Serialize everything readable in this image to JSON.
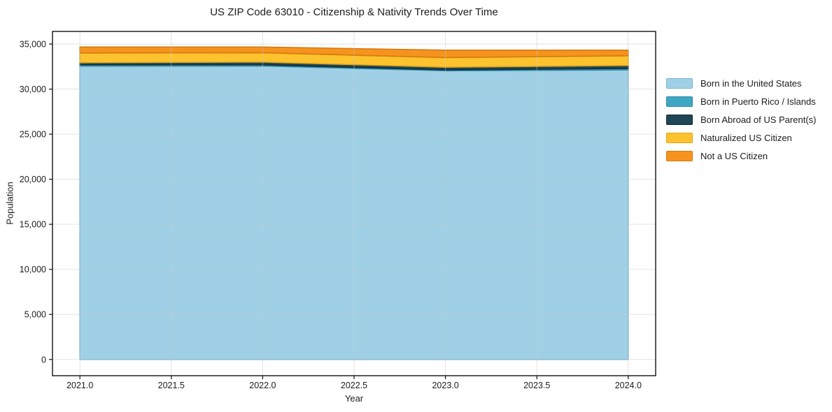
{
  "chart_data": {
    "type": "area",
    "stacked": true,
    "title": "US ZIP Code 63010 - Citizenship & Nativity Trends Over Time",
    "xlabel": "Year",
    "ylabel": "Population",
    "x": [
      2021,
      2022,
      2023,
      2024
    ],
    "series": [
      {
        "name": "Born in the United States",
        "color": "#9fd0e6",
        "edge": "#76b4d4",
        "values": [
          32550,
          32570,
          32040,
          32130
        ]
      },
      {
        "name": "Born in Puerto Rico / Islands",
        "color": "#3fa7c4",
        "edge": "#2b8aa6",
        "values": [
          150,
          130,
          90,
          160
        ]
      },
      {
        "name": "Born Abroad of US Parent(s)",
        "color": "#1f4557",
        "edge": "#142e3b",
        "values": [
          230,
          300,
          300,
          330
        ]
      },
      {
        "name": "Naturalized US Citizen",
        "color": "#fdc32f",
        "edge": "#dfa416",
        "values": [
          1080,
          1030,
          1070,
          1080
        ]
      },
      {
        "name": "Not a US Citizen",
        "color": "#f6931e",
        "edge": "#d57a0e",
        "values": [
          660,
          640,
          820,
          620
        ]
      }
    ],
    "xticks": {
      "values": [
        2021.0,
        2021.5,
        2022.0,
        2022.5,
        2023.0,
        2023.5,
        2024.0
      ],
      "labels": [
        "2021.0",
        "2021.5",
        "2022.0",
        "2022.5",
        "2023.0",
        "2023.5",
        "2024.0"
      ]
    },
    "yticks": {
      "values": [
        0,
        5000,
        10000,
        15000,
        20000,
        25000,
        30000,
        35000
      ],
      "labels": [
        "0",
        "5,000",
        "10,000",
        "15,000",
        "20,000",
        "25,000",
        "30,000",
        "35,000"
      ]
    },
    "xlim": [
      2020.85,
      2024.15
    ],
    "ylim": [
      -1800,
      36400
    ],
    "grid": true,
    "legend_position": "outside right"
  },
  "colors": {
    "background": "#ffffff",
    "text": "#1c1c1c",
    "spine": "#111111",
    "grid": "#c9c9c9"
  }
}
